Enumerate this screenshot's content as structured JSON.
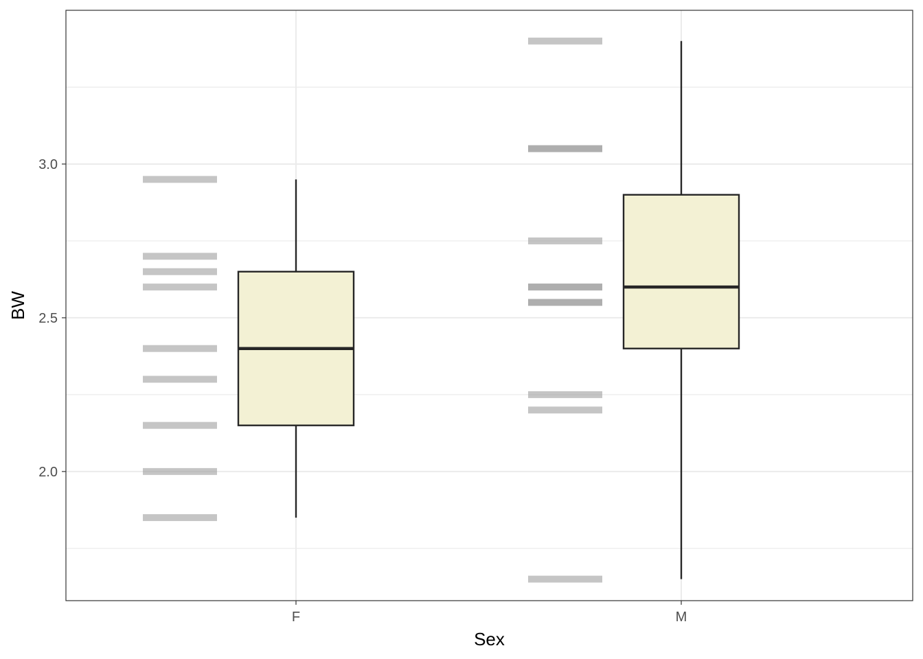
{
  "chart_data": {
    "type": "boxplot",
    "title": "",
    "xlabel": "Sex",
    "ylabel": "BW",
    "categories": [
      "F",
      "M"
    ],
    "yticks": [
      2.0,
      2.5,
      3.0
    ],
    "ytick_labels": [
      "2.0",
      "2.5",
      "3.0"
    ],
    "ylim": [
      1.58,
      3.5
    ],
    "grid": true,
    "boxes": [
      {
        "category": "F",
        "whisker_low": 1.85,
        "q1": 2.15,
        "median": 2.4,
        "q3": 2.65,
        "whisker_high": 2.95
      },
      {
        "category": "M",
        "whisker_low": 1.65,
        "q1": 2.4,
        "median": 2.6,
        "q3": 2.9,
        "whisker_high": 3.4
      }
    ],
    "rug": [
      {
        "category": "F",
        "values": [
          2.95,
          2.7,
          2.65,
          2.6,
          2.4,
          2.3,
          2.15,
          2.0,
          1.85
        ]
      },
      {
        "category": "M",
        "values": [
          3.4,
          3.05,
          3.05,
          2.75,
          2.6,
          2.6,
          2.55,
          2.55,
          2.25,
          2.2,
          1.65
        ]
      }
    ],
    "colors": {
      "box_fill": "#f3f1d4",
      "box_stroke": "#262626",
      "rug": "#9e9e9e",
      "grid": "#ebebeb",
      "panel_border": "#333333"
    }
  }
}
